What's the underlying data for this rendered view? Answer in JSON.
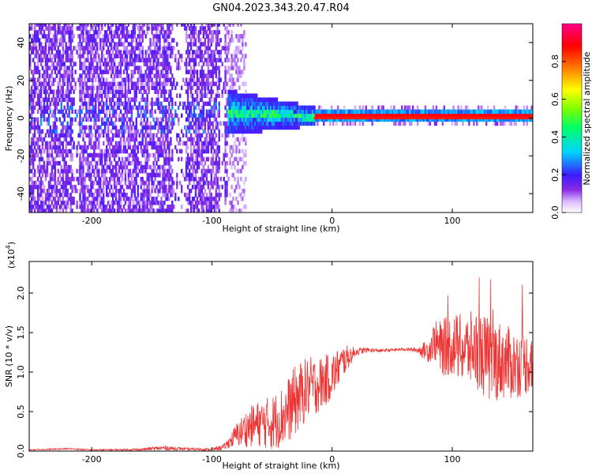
{
  "title": "GN04.2023.343.20.47.R04",
  "chart_data": [
    {
      "type": "heatmap",
      "xlabel": "Height of straight line (km)",
      "ylabel": "Frequency (Hz)",
      "xlim": [
        -252,
        167
      ],
      "ylim": [
        -50,
        50
      ],
      "xticks": [
        -200,
        -100,
        0,
        100
      ],
      "yticks": [
        -40,
        -20,
        0,
        20,
        40
      ],
      "colorbar": {
        "label": "Normalized spectral amplitude",
        "range": [
          0,
          1
        ],
        "ticks": [
          0.0,
          0.2,
          0.4,
          0.6,
          0.8
        ],
        "tick_labels": [
          "0.0",
          "0.2",
          "0.4",
          "0.6",
          "0.8"
        ],
        "colormap": "rainbow (white-purple-blue-cyan-green-yellow-red-magenta)"
      },
      "regions": [
        {
          "x_range": [
            -252,
            -88
          ],
          "freq_range": [
            -50,
            50
          ],
          "level": "low (0.05-0.25), broadband noise",
          "gaps_at_x": [
            -214,
            -130,
            -125,
            -92
          ]
        },
        {
          "x_range": [
            -88,
            -15
          ],
          "freq_range": [
            -12,
            12
          ],
          "level": "medium (0.2-0.5), narrowing band",
          "peak_freq": 2
        },
        {
          "x_range": [
            -15,
            167
          ],
          "freq_range": [
            -3,
            3
          ],
          "level": "high (0.8-0.95) at 0 Hz",
          "peak_freq": 0
        }
      ]
    },
    {
      "type": "line",
      "xlabel": "Height of straight line (km)",
      "ylabel": "SNR (10 * v/v)",
      "y_multiplier": "(x10",
      "y_multiplier_exp": "4",
      "y_multiplier_close": ")",
      "xlim": [
        -252,
        167
      ],
      "ylim": [
        0,
        24000
      ],
      "xticks": [
        -200,
        -100,
        0,
        100
      ],
      "yticks": [
        0,
        5000,
        10000,
        15000,
        20000
      ],
      "ytick_labels": [
        "0.0",
        "0.5",
        "1.0",
        "1.5",
        "2.0"
      ],
      "color": "#ee3333",
      "series": [
        {
          "x": [
            -252,
            -220,
            -200,
            -160,
            -140,
            -120,
            -100,
            -90,
            -85,
            -80,
            -70,
            -60,
            -50,
            -40,
            -30,
            -20,
            -10,
            0,
            10,
            20,
            30,
            40,
            50,
            60,
            70,
            80,
            85,
            90,
            100,
            110,
            120,
            130,
            140,
            150,
            160,
            167
          ],
          "y": [
            150,
            300,
            150,
            200,
            400,
            250,
            200,
            500,
            1200,
            2000,
            3000,
            3500,
            3600,
            4500,
            6500,
            8000,
            8500,
            9500,
            11500,
            12600,
            12800,
            12700,
            12800,
            12900,
            12800,
            12700,
            14000,
            13000,
            13500,
            12800,
            13000,
            11500,
            11500,
            11000,
            11000,
            11500
          ],
          "noise": [
            50,
            100,
            80,
            150,
            300,
            150,
            150,
            400,
            800,
            1500,
            2500,
            3000,
            3500,
            4000,
            4500,
            4000,
            3500,
            3000,
            2000,
            500,
            300,
            200,
            200,
            200,
            300,
            1500,
            2500,
            3500,
            4000,
            4500,
            5000,
            5500,
            5000,
            4500,
            4000,
            4000
          ]
        }
      ]
    }
  ]
}
